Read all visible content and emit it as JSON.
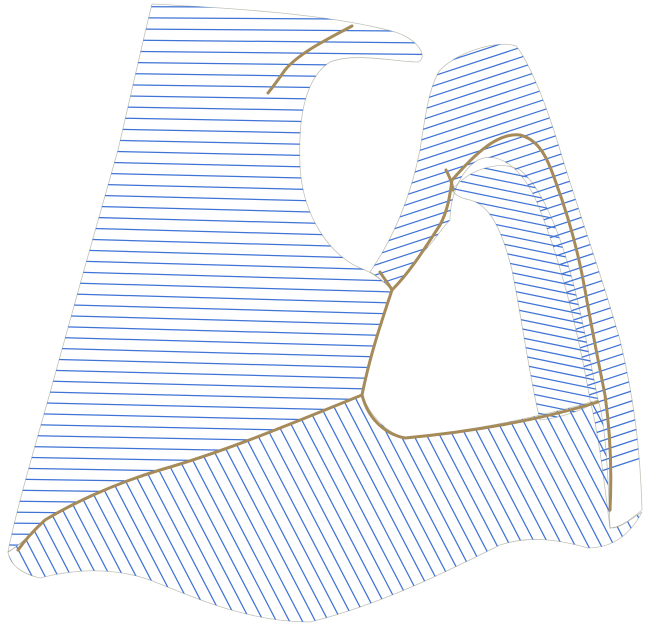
{
  "figure": {
    "surface_color": "#f7f6ee",
    "shade_color": "#a9a99b",
    "hatch_color": "#3f73d6",
    "seam_color": "#a58a5a",
    "background": "#ffffff"
  }
}
